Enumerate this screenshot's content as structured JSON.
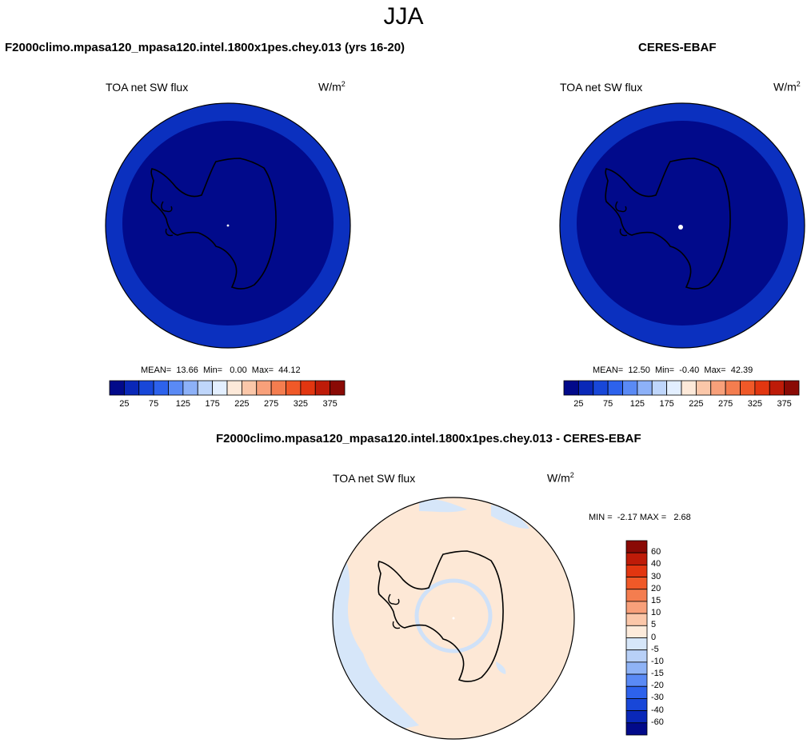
{
  "season": "JJA",
  "panels": [
    {
      "title": "F2000climo.mpasa120_mpasa120.intel.1800x1pes.chey.013 (yrs 16-20)",
      "variable": "TOA net SW flux",
      "units_base": "W/m",
      "units_exp": "2",
      "stats": "MEAN=  13.66  Min=   0.00  Max=  44.12",
      "fill_outer": "#0b30bf",
      "fill_inner": "#010a8b",
      "pole_marker": "small"
    },
    {
      "title": "CERES-EBAF",
      "variable": "TOA net SW flux",
      "units_base": "W/m",
      "units_exp": "2",
      "stats": "MEAN=  12.50  Min=  -0.40  Max=  42.39",
      "fill_outer": "#0b30bf",
      "fill_inner": "#010a8b",
      "pole_marker": "large"
    },
    {
      "title": "F2000climo.mpasa120_mpasa120.intel.1800x1pes.chey.013 - CERES-EBAF",
      "variable": "TOA net SW flux",
      "units_base": "W/m",
      "units_exp": "2",
      "stats": "MIN =  -2.17 MAX =   2.68",
      "fill_outer": "#fde8d6",
      "fill_patch": "#d6e6f9"
    }
  ],
  "chart_data": [
    {
      "type": "heatmap",
      "projection": "south-polar-stereographic",
      "title": "TOA net SW flux",
      "units": "W/m2",
      "stats": {
        "mean": 13.66,
        "min": 0.0,
        "max": 44.12
      },
      "colorbar": {
        "orientation": "horizontal",
        "tick_labels": [
          "25",
          "75",
          "125",
          "175",
          "225",
          "275",
          "325",
          "375"
        ],
        "levels": [
          25,
          50,
          75,
          100,
          125,
          150,
          175,
          200,
          225,
          250,
          275,
          300,
          325,
          350,
          375
        ],
        "colors": [
          "#020a8a",
          "#0a28b8",
          "#1847d8",
          "#2d62ec",
          "#5a8af5",
          "#8db1f8",
          "#bfd6fb",
          "#e3efff",
          "#fde9d9",
          "#fbc7a9",
          "#f8a07a",
          "#f47d4f",
          "#f05928",
          "#e23610",
          "#be1b08",
          "#8a0a05"
        ]
      }
    },
    {
      "type": "heatmap",
      "projection": "south-polar-stereographic",
      "title": "TOA net SW flux",
      "units": "W/m2",
      "stats": {
        "mean": 12.5,
        "min": -0.4,
        "max": 42.39
      },
      "colorbar": {
        "orientation": "horizontal",
        "tick_labels": [
          "25",
          "75",
          "125",
          "175",
          "225",
          "275",
          "325",
          "375"
        ],
        "levels": [
          25,
          50,
          75,
          100,
          125,
          150,
          175,
          200,
          225,
          250,
          275,
          300,
          325,
          350,
          375
        ],
        "colors": [
          "#020a8a",
          "#0a28b8",
          "#1847d8",
          "#2d62ec",
          "#5a8af5",
          "#8db1f8",
          "#bfd6fb",
          "#e3efff",
          "#fde9d9",
          "#fbc7a9",
          "#f8a07a",
          "#f47d4f",
          "#f05928",
          "#e23610",
          "#be1b08",
          "#8a0a05"
        ]
      }
    },
    {
      "type": "heatmap",
      "projection": "south-polar-stereographic",
      "title": "TOA net SW flux",
      "units": "W/m2",
      "stats": {
        "min": -2.17,
        "max": 2.68
      },
      "colorbar": {
        "orientation": "vertical",
        "tick_labels": [
          "60",
          "40",
          "30",
          "20",
          "15",
          "10",
          "5",
          "0",
          "-5",
          "-10",
          "-15",
          "-20",
          "-30",
          "-40",
          "-60"
        ],
        "levels": [
          60,
          40,
          30,
          20,
          15,
          10,
          5,
          0,
          -5,
          -10,
          -15,
          -20,
          -30,
          -40,
          -60
        ],
        "colors": [
          "#8a0a05",
          "#be1b08",
          "#e23610",
          "#f05928",
          "#f47d4f",
          "#f8a07a",
          "#fbc7a9",
          "#fdebdb",
          "#d6e6f9",
          "#b8d0f7",
          "#8fb3f6",
          "#5a8af5",
          "#2d62ec",
          "#1847d8",
          "#0a28b8",
          "#020a8a"
        ]
      }
    }
  ]
}
